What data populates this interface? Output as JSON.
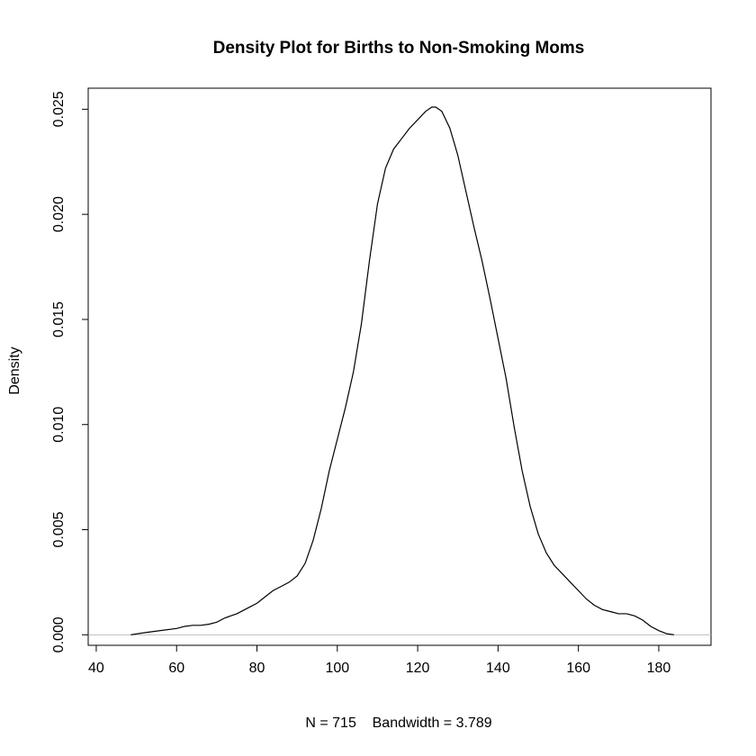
{
  "chart_data": {
    "type": "line",
    "title": "Density Plot for Births to Non-Smoking Moms",
    "xlabel": "N = 715    Bandwidth = 3.789",
    "ylabel": "Density",
    "xlim": [
      38,
      193
    ],
    "ylim": [
      -0.0005,
      0.026
    ],
    "x_ticks": [
      "40",
      "60",
      "80",
      "100",
      "120",
      "140",
      "160",
      "180"
    ],
    "y_ticks": [
      "0.000",
      "0.005",
      "0.010",
      "0.015",
      "0.020",
      "0.025"
    ],
    "baseline": {
      "y": 0,
      "color": "#bebebe"
    },
    "line_color": "#000000",
    "grid": false,
    "series": [
      {
        "x": [
          48.6,
          52,
          56,
          60,
          62,
          64,
          66,
          68,
          70,
          72,
          75,
          78,
          80,
          82,
          84,
          86,
          88,
          90,
          92,
          94,
          96,
          98,
          100,
          102,
          104,
          106,
          108,
          110,
          112,
          114,
          116,
          118,
          120,
          122,
          123.5,
          124.5,
          126,
          128,
          130,
          132,
          134,
          136,
          138,
          140,
          142,
          144,
          146,
          148,
          150,
          152,
          154,
          156,
          158,
          160,
          162,
          164,
          166,
          168,
          170,
          172,
          174,
          176,
          178,
          180,
          182,
          183.8
        ],
        "y": [
          0.0,
          0.0001,
          0.0002,
          0.0003,
          0.0004,
          0.00045,
          0.00045,
          0.0005,
          0.0006,
          0.0008,
          0.001,
          0.0013,
          0.0015,
          0.0018,
          0.0021,
          0.0023,
          0.0025,
          0.0028,
          0.0034,
          0.0045,
          0.006,
          0.0078,
          0.0093,
          0.0108,
          0.0125,
          0.0148,
          0.0178,
          0.0205,
          0.0222,
          0.0231,
          0.0236,
          0.0241,
          0.0245,
          0.0249,
          0.0251,
          0.0251,
          0.0249,
          0.0241,
          0.0228,
          0.0211,
          0.0194,
          0.0178,
          0.016,
          0.0141,
          0.0122,
          0.0099,
          0.0078,
          0.0061,
          0.0048,
          0.0039,
          0.0033,
          0.0029,
          0.0025,
          0.0021,
          0.0017,
          0.0014,
          0.0012,
          0.0011,
          0.001,
          0.001,
          0.0009,
          0.0007,
          0.0004,
          0.0002,
          5e-05,
          0.0
        ]
      }
    ]
  }
}
